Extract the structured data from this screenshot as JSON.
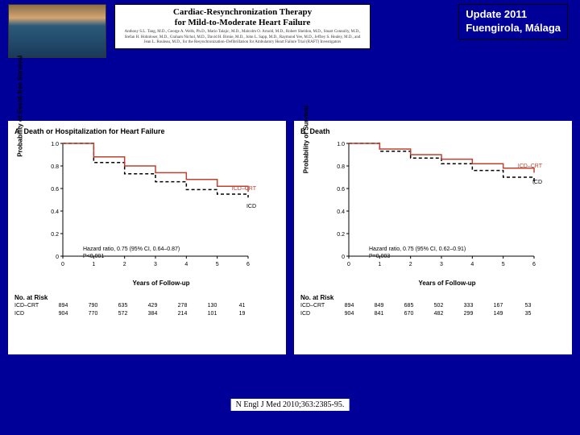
{
  "header": {
    "title_line1": "Cardiac-Resynchronization Therapy",
    "title_line2": "for Mild-to-Moderate Heart Failure",
    "authors": "Anthony S.L. Tang, M.D., George A. Wells, Ph.D., Mario Talajic, M.D., Malcolm O. Arnold, M.D., Robert Sheldon, M.D., Stuart Connolly, M.D., Stefan H. Hohnloser, M.D., Graham Nichol, M.D., David H. Birnie, M.D., John L. Sapp, M.D., Raymond Yee, M.D., Jeffrey S. Healey, M.D., and Jean L. Rouleau, M.D., for the Resynchronization–Defibrillation for Ambulatory Heart Failure Trial (RAFT) Investigators",
    "update_line1": "Update 2011",
    "update_line2": "Fuengirola, Málaga"
  },
  "panelA": {
    "label": "A",
    "title": "Death or Hospitalization for Heart Failure",
    "ylabel": "Probability of Event-free Survival",
    "xlabel": "Years of Follow-up",
    "ylim": [
      0,
      1.0
    ],
    "yticks": [
      "0",
      "0.2",
      "0.4",
      "0.6",
      "0.8",
      "1.0"
    ],
    "xticks": [
      "0",
      "1",
      "2",
      "3",
      "4",
      "5",
      "6"
    ],
    "hr_text": "Hazard ratio, 0.75 (95% CI, 0.64–0.87)",
    "p_text": "P<0.001",
    "series1_label": "ICD–CRT",
    "series2_label": "ICD",
    "series1_color": "#c04030",
    "series2_color": "#000000",
    "series1_y": [
      1.0,
      0.88,
      0.8,
      0.74,
      0.68,
      0.62,
      0.57
    ],
    "series2_y": [
      1.0,
      0.83,
      0.73,
      0.66,
      0.59,
      0.55,
      0.52
    ],
    "risk_header": "No. at Risk",
    "risk_rows": [
      {
        "label": "ICD–CRT",
        "values": [
          "894",
          "790",
          "635",
          "429",
          "278",
          "130",
          "41"
        ]
      },
      {
        "label": "ICD",
        "values": [
          "904",
          "770",
          "572",
          "384",
          "214",
          "101",
          "19"
        ]
      }
    ]
  },
  "panelB": {
    "label": "B",
    "title": "Death",
    "ylabel": "Probability of Survival",
    "xlabel": "Years of Follow-up",
    "ylim": [
      0,
      1.0
    ],
    "yticks": [
      "0",
      "0.2",
      "0.4",
      "0.6",
      "0.8",
      "1.0"
    ],
    "xticks": [
      "0",
      "1",
      "2",
      "3",
      "4",
      "5",
      "6"
    ],
    "hr_text": "Hazard ratio, 0.75 (95% CI, 0.62–0.91)",
    "p_text": "P=0.003",
    "series1_label": "ICD–CRT",
    "series2_label": "ICD",
    "series1_color": "#c04030",
    "series2_color": "#000000",
    "series1_y": [
      1.0,
      0.95,
      0.9,
      0.86,
      0.82,
      0.78,
      0.74
    ],
    "series2_y": [
      1.0,
      0.93,
      0.87,
      0.82,
      0.76,
      0.7,
      0.64
    ],
    "risk_header": "No. at Risk",
    "risk_rows": [
      {
        "label": "ICD–CRT",
        "values": [
          "894",
          "849",
          "685",
          "502",
          "333",
          "167",
          "53"
        ]
      },
      {
        "label": "ICD",
        "values": [
          "904",
          "841",
          "670",
          "482",
          "299",
          "149",
          "35"
        ]
      }
    ]
  },
  "citation": "N Engl J Med 2010;363:2385-95."
}
